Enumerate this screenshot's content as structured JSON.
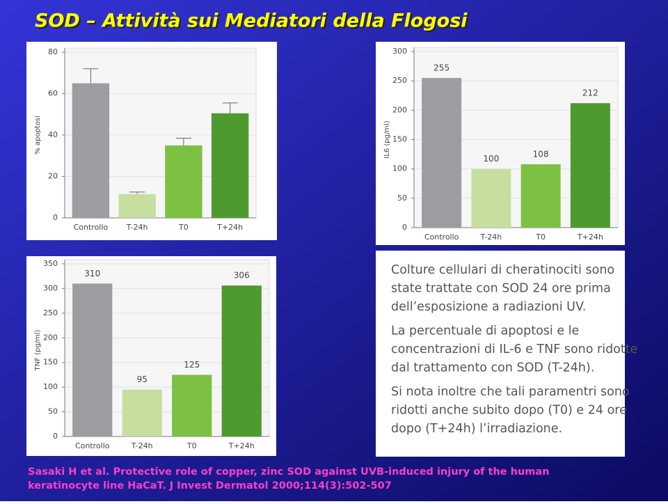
{
  "title": "SOD – Attività sui Mediatori della Flogosi",
  "chart_data": [
    {
      "type": "bar",
      "y_label": "% apoptosi",
      "categories": [
        "Controllo",
        "T-24h",
        "T0",
        "T+24h"
      ],
      "series": [
        {
          "colors": [
            "#9b9da1",
            "#c6dfa0",
            "#7cc142",
            "#4f9a2f"
          ],
          "values": [
            65,
            11.5,
            35,
            50.5
          ],
          "errors": [
            7,
            1,
            3.5,
            5
          ]
        }
      ],
      "ylim": [
        0,
        80
      ],
      "yticks": [
        0,
        20,
        40,
        60,
        80
      ],
      "grid": true,
      "data_labels": false
    },
    {
      "type": "bar",
      "y_label": "IL6 (pg/ml)",
      "categories": [
        "Controllo",
        "T-24h",
        "T0",
        "T+24h"
      ],
      "series": [
        {
          "colors": [
            "#9b9da1",
            "#c6dfa0",
            "#7cc142",
            "#4f9a2f"
          ],
          "values": [
            255,
            100,
            108,
            212
          ]
        }
      ],
      "ylim": [
        0,
        300
      ],
      "yticks": [
        0,
        50,
        100,
        150,
        200,
        250,
        300
      ],
      "grid": true,
      "data_labels": true
    },
    {
      "type": "bar",
      "y_label": "TNF (pg/ml)",
      "categories": [
        "Controllo",
        "T-24h",
        "T0",
        "T+24h"
      ],
      "series": [
        {
          "colors": [
            "#9b9da1",
            "#c6dfa0",
            "#7cc142",
            "#4f9a2f"
          ],
          "values": [
            310,
            95,
            125,
            306
          ]
        }
      ],
      "ylim": [
        0,
        350
      ],
      "yticks": [
        0,
        50,
        100,
        150,
        200,
        250,
        300,
        350
      ],
      "grid": true,
      "data_labels": true
    }
  ],
  "text_box": [
    "Colture cellulari di cheratinociti sono",
    "state trattate con SOD 24 ore prima",
    "dell’esposizione a radiazioni UV.",
    "La percentuale di apoptosi e le",
    "concentrazioni di IL-6 e TNF sono ridotte",
    "dal trattamento con SOD (T-24h).",
    "Si nota inoltre che tali paramentri sono",
    "ridotti anche subito dopo (T0) e 24 ore",
    "dopo (T+24h) l’irradiazione."
  ],
  "citation": [
    "Sasaki H et al. Protective role of copper, zinc SOD against UVB-induced injury of the human",
    "keratinocyte line HaCaT. J Invest Dermatol 2000;114(3):502-507"
  ]
}
